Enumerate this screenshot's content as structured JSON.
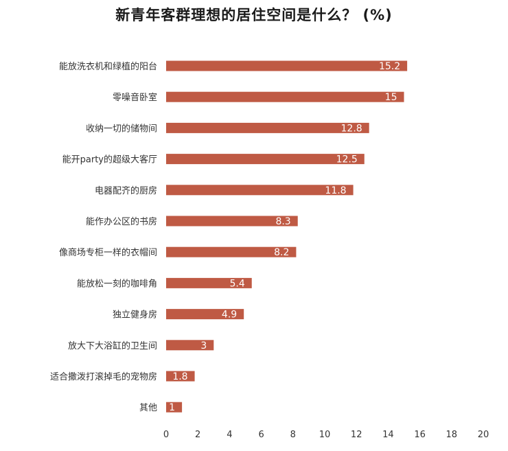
{
  "chart_data": {
    "type": "bar",
    "orientation": "horizontal",
    "title": "新青年客群理想的居住空间是什么？  (%)",
    "categories": [
      "能放洗衣机和绿植的阳台",
      "零噪音卧室",
      "收纳一切的储物间",
      "能开party的超级大客厅",
      "电器配齐的厨房",
      "能作办公区的书房",
      "像商场专柜一样的衣帽间",
      "能放松一刻的咖啡角",
      "独立健身房",
      "放大下大浴缸的卫生间",
      "适合撒泼打滚掉毛的宠物房",
      "其他"
    ],
    "values": [
      15.2,
      15,
      12.8,
      12.5,
      11.8,
      8.3,
      8.2,
      5.4,
      4.9,
      3,
      1.8,
      1
    ],
    "value_labels": [
      "15.2",
      "15",
      "12.8",
      "12.5",
      "11.8",
      "8.3",
      "8.2",
      "5.4",
      "4.9",
      "3",
      "1.8",
      "1"
    ],
    "xlim": [
      0,
      20
    ],
    "xticks": [
      "0",
      "2",
      "4",
      "6",
      "8",
      "10",
      "12",
      "14",
      "16",
      "18",
      "20"
    ],
    "grid": false,
    "legend": "none",
    "bar_color": "#bf5a44",
    "label_color": "#ffffff"
  }
}
